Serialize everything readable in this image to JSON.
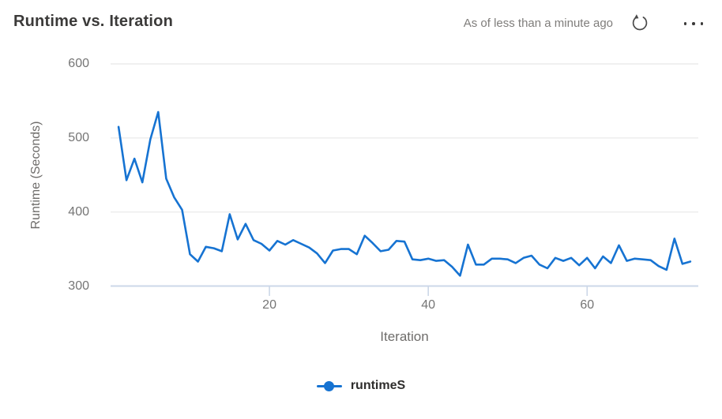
{
  "header": {
    "title": "Runtime vs. Iteration",
    "freshness": "As of less than a minute ago",
    "refresh_icon": "refresh-icon",
    "more_options_icon": "ellipsis-icon"
  },
  "colors": {
    "series_blue": "#1673d2",
    "gridline": "#ebebeb",
    "axis_line": "#ccd7e8",
    "tick_text": "#757575",
    "title_text": "#3b3a39",
    "icon_gray": "#4a4a4a"
  },
  "chart_data": {
    "type": "line",
    "title": "Runtime vs. Iteration",
    "xlabel": "Iteration",
    "ylabel": "Runtime (Seconds)",
    "xlim": [
      0,
      74
    ],
    "ylim": [
      300,
      600
    ],
    "y_ticks": [
      600,
      500,
      400,
      300
    ],
    "x_ticks": [
      20,
      40,
      60
    ],
    "grid": "horizontal",
    "legend_position": "bottom",
    "x": [
      1,
      2,
      3,
      4,
      5,
      6,
      7,
      8,
      9,
      10,
      11,
      12,
      13,
      14,
      15,
      16,
      17,
      18,
      19,
      20,
      21,
      22,
      23,
      24,
      25,
      26,
      27,
      28,
      29,
      30,
      31,
      32,
      33,
      34,
      35,
      36,
      37,
      38,
      39,
      40,
      41,
      42,
      43,
      44,
      45,
      46,
      47,
      48,
      49,
      50,
      51,
      52,
      53,
      54,
      55,
      56,
      57,
      58,
      59,
      60,
      61,
      62,
      63,
      64,
      65,
      66,
      67,
      68,
      69,
      70,
      71,
      72,
      73
    ],
    "series": [
      {
        "name": "runtimeS",
        "color": "#1673d2",
        "values": [
          515,
          443,
          472,
          440,
          498,
          535,
          445,
          420,
          403,
          343,
          333,
          353,
          351,
          347,
          397,
          363,
          384,
          362,
          357,
          348,
          361,
          356,
          362,
          357,
          352,
          344,
          331,
          348,
          350,
          350,
          343,
          368,
          358,
          347,
          349,
          361,
          360,
          336,
          335,
          337,
          334,
          335,
          326,
          314,
          356,
          329,
          329,
          337,
          337,
          336,
          331,
          338,
          341,
          329,
          324,
          338,
          334,
          338,
          328,
          338,
          324,
          340,
          331,
          355,
          334,
          337,
          336,
          335,
          327,
          322,
          364,
          330,
          333
        ]
      }
    ]
  },
  "legend": {
    "items": [
      {
        "label": "runtimeS",
        "color": "#1673d2"
      }
    ]
  }
}
